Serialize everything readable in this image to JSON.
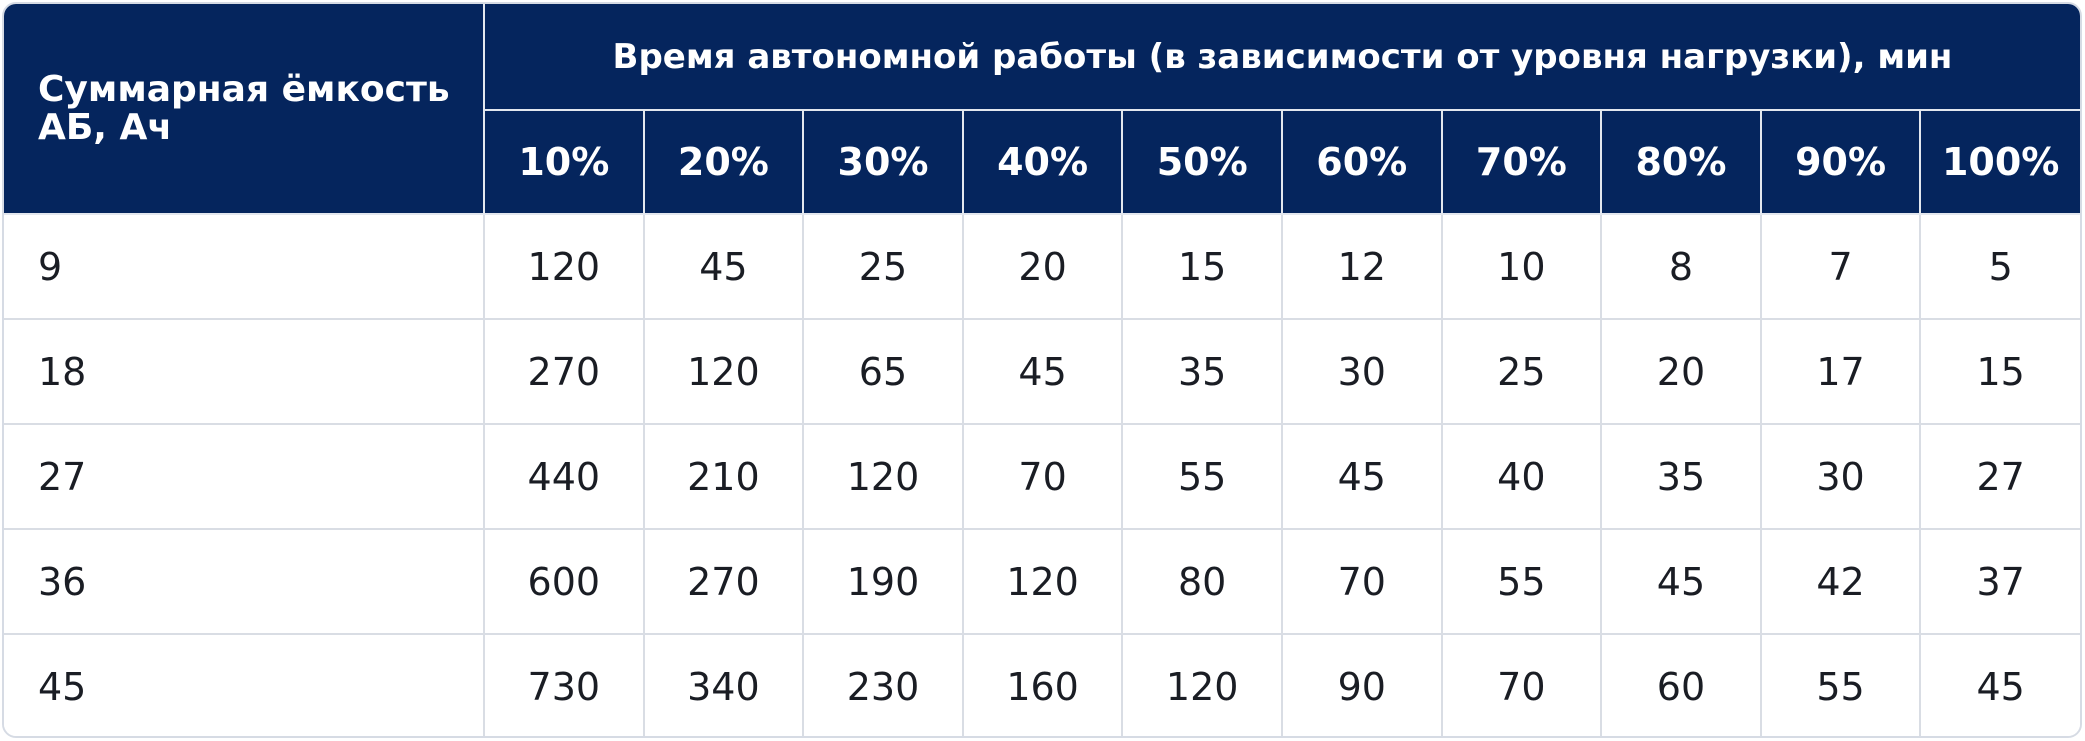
{
  "table": {
    "capacity_header": "Суммарная ёмкость АБ, Ач",
    "group_header": "Время автономной работы (в зависимости от уровня нагрузки), мин",
    "load_levels": [
      "10%",
      "20%",
      "30%",
      "40%",
      "50%",
      "60%",
      "70%",
      "80%",
      "90%",
      "100%"
    ],
    "rows": [
      {
        "capacity": "9",
        "values": [
          "120",
          "45",
          "25",
          "20",
          "15",
          "12",
          "10",
          "8",
          "7",
          "5"
        ]
      },
      {
        "capacity": "18",
        "values": [
          "270",
          "120",
          "65",
          "45",
          "35",
          "30",
          "25",
          "20",
          "17",
          "15"
        ]
      },
      {
        "capacity": "27",
        "values": [
          "440",
          "210",
          "120",
          "70",
          "55",
          "45",
          "40",
          "35",
          "30",
          "27"
        ]
      },
      {
        "capacity": "36",
        "values": [
          "600",
          "270",
          "190",
          "120",
          "80",
          "70",
          "55",
          "45",
          "42",
          "37"
        ]
      },
      {
        "capacity": "45",
        "values": [
          "730",
          "340",
          "230",
          "160",
          "120",
          "90",
          "70",
          "60",
          "55",
          "45"
        ]
      }
    ]
  },
  "colors": {
    "header_background": "#05255d",
    "header_text": "#ffffff",
    "body_text": "#1a1d24",
    "grid_lines": "#d9dde4"
  }
}
